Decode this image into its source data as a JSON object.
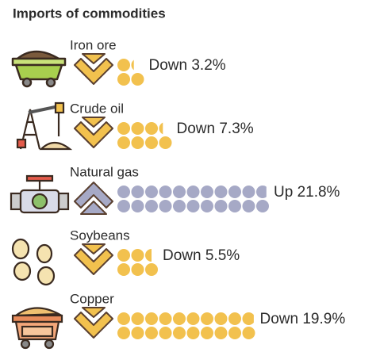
{
  "chart_data": {
    "type": "pictograph",
    "title": "Imports of commodities",
    "categories": [
      "Iron ore",
      "Crude oil",
      "Natural gas",
      "Soybeans",
      "Copper"
    ],
    "values": [
      -3.2,
      -7.3,
      21.8,
      -5.5,
      -19.9
    ],
    "value_labels": [
      "Down 3.2%",
      "Down 7.3%",
      "Up 21.8%",
      "Down 5.5%",
      "Down 19.9%"
    ],
    "color_down": "#f2c14e",
    "color_up": "#a6a9c6"
  }
}
